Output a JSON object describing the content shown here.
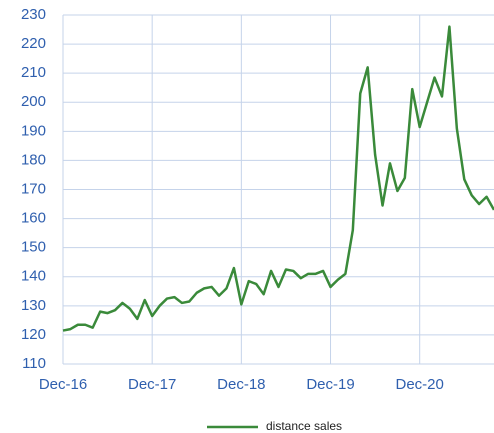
{
  "chart_data": {
    "type": "line",
    "categories": [
      "Dec-16",
      null,
      null,
      null,
      null,
      null,
      null,
      null,
      null,
      null,
      null,
      null,
      "Dec-17",
      null,
      null,
      null,
      null,
      null,
      null,
      null,
      null,
      null,
      null,
      null,
      "Dec-18",
      null,
      null,
      null,
      null,
      null,
      null,
      null,
      null,
      null,
      null,
      null,
      "Dec-19",
      null,
      null,
      null,
      null,
      null,
      null,
      null,
      null,
      null,
      null,
      null,
      "Dec-20",
      null,
      null,
      null,
      null,
      null,
      null,
      null,
      null,
      null,
      null
    ],
    "series": [
      {
        "name": "distance sales",
        "color": "#3a8a3a",
        "values": [
          121.5,
          122,
          123.5,
          123.5,
          122.5,
          128,
          127.5,
          128.5,
          131,
          129,
          125.5,
          132,
          126.5,
          130,
          132.5,
          133,
          131,
          131.5,
          134.5,
          136,
          136.5,
          133.5,
          136,
          143,
          130.5,
          138.5,
          137.5,
          134,
          142,
          136.5,
          142.5,
          142,
          139.5,
          141,
          141,
          142,
          136.5,
          139,
          141,
          156,
          203,
          212,
          182,
          164.5,
          179,
          169.5,
          174,
          204.5,
          191.5,
          200,
          208.5,
          202,
          226,
          191,
          173.5,
          168,
          165,
          167.5,
          163
        ]
      }
    ],
    "ylim": [
      110,
      230
    ],
    "yticks": [
      110,
      120,
      130,
      140,
      150,
      160,
      170,
      180,
      190,
      200,
      210,
      220,
      230
    ],
    "grid": true,
    "legend": "bottom"
  }
}
